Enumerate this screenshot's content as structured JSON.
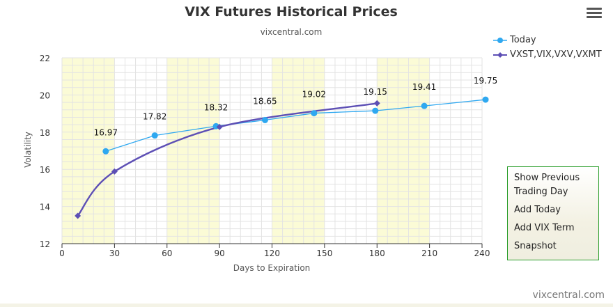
{
  "title": "VIX Futures Historical Prices",
  "subtitle": "vixcentral.com",
  "footer_credit": "vixcentral.com",
  "menu_icon": "hamburger-menu-icon",
  "side_panel": {
    "items": [
      "Show Previous Trading Day",
      "Add Today",
      "Add VIX Term",
      "Snapshot"
    ]
  },
  "colors": {
    "today": "#2fa8f0",
    "term": "#5d4fb5",
    "band": "#fbfbd6",
    "grid": "#e3e3e3",
    "panel_border": "#2a9d2a"
  },
  "chart_data": {
    "type": "line",
    "title": "VIX Futures Historical Prices",
    "subtitle": "vixcentral.com",
    "xlabel": "Days to Expiration",
    "ylabel": "Volatility",
    "xlim": [
      0,
      240
    ],
    "ylim": [
      12,
      22
    ],
    "x_ticks": [
      "0",
      "30",
      "60",
      "90",
      "120",
      "150",
      "180",
      "210",
      "240"
    ],
    "y_ticks": [
      "12",
      "14",
      "16",
      "18",
      "20",
      "22"
    ],
    "shaded_x_bands": [
      [
        0,
        30
      ],
      [
        60,
        90
      ],
      [
        120,
        150
      ],
      [
        180,
        210
      ]
    ],
    "grid": true,
    "legend_position": "top-right",
    "series": [
      {
        "name": "Today",
        "x": [
          25,
          53,
          88,
          116,
          144,
          179,
          207,
          242
        ],
        "values": [
          16.97,
          17.82,
          18.32,
          18.65,
          19.02,
          19.15,
          19.41,
          19.75
        ],
        "labels": [
          "16.97",
          "17.82",
          "18.32",
          "18.65",
          "19.02",
          "19.15",
          "19.41",
          "19.75"
        ]
      },
      {
        "name": "VXST,VIX,VXV,VXMT",
        "x": [
          9,
          30,
          90,
          180
        ],
        "values": [
          13.5,
          15.88,
          18.28,
          19.55
        ]
      }
    ]
  }
}
